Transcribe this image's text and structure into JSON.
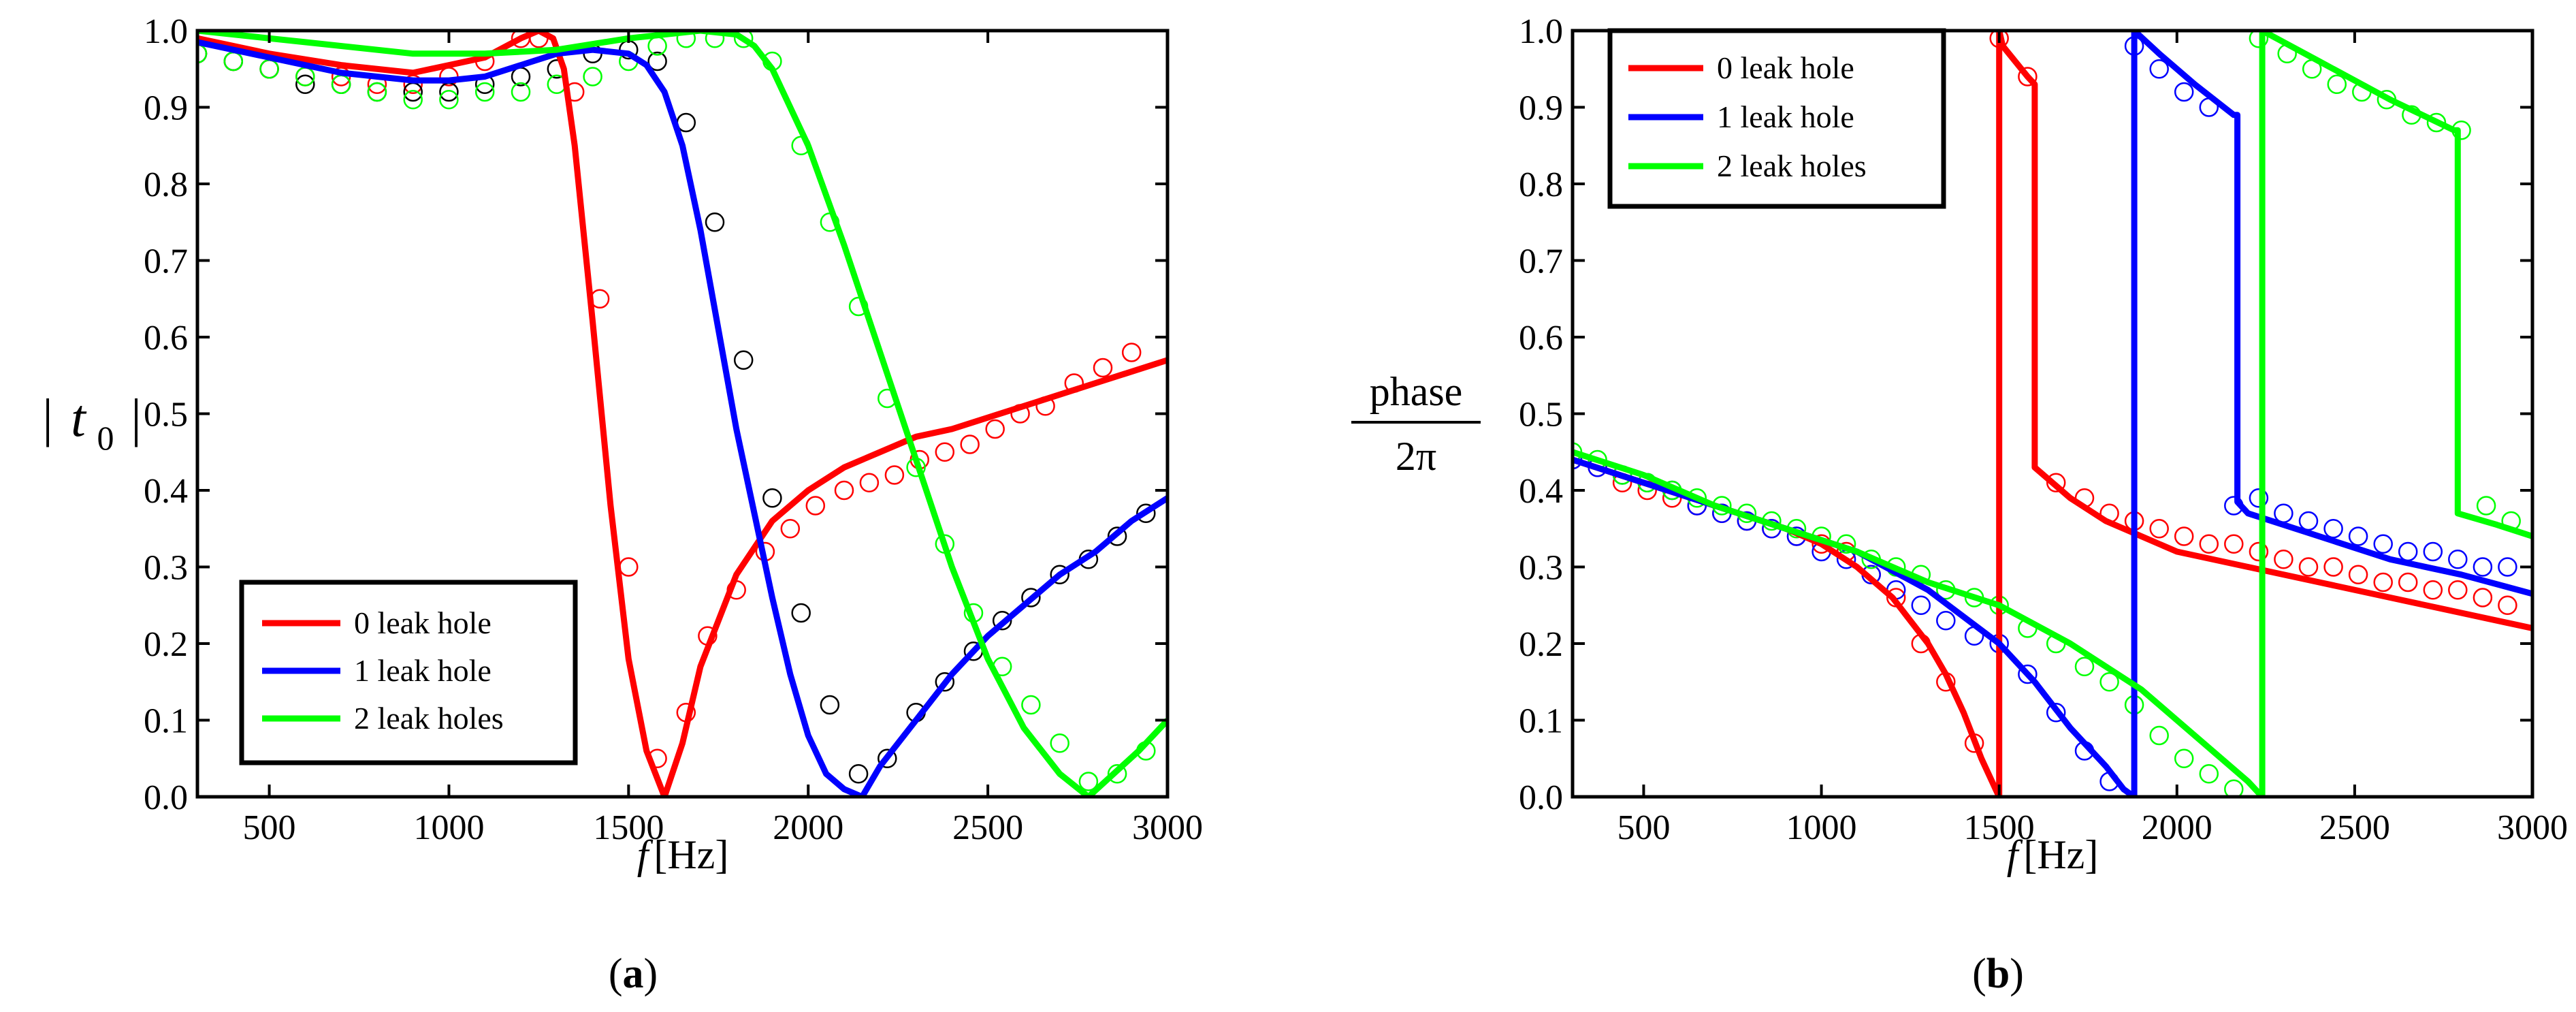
{
  "chart_data": [
    {
      "type": "line",
      "panel_label": "(a)",
      "panel_label_parts": [
        "(",
        "a",
        ")"
      ],
      "xlabel": "f [Hz]",
      "xlabel_parts": {
        "var": "f",
        "unit": "[Hz]"
      },
      "ylabel": "| t0 |",
      "ylabel_parts": {
        "left_bar": "|",
        "var": "t",
        "sub": "0",
        "right_bar": "|"
      },
      "xlim": [
        300,
        3000
      ],
      "ylim": [
        0,
        1.0
      ],
      "xticks": [
        500,
        1000,
        1500,
        2000,
        2500,
        3000
      ],
      "xtick_labels": [
        "500",
        "1000",
        "1500",
        "2000",
        "2500",
        "3000"
      ],
      "yticks": [
        0,
        0.1,
        0.2,
        0.3,
        0.4,
        0.5,
        0.6,
        0.7,
        0.8,
        0.9,
        1.0
      ],
      "ytick_labels": [
        "0.0",
        "0.1",
        "0.2",
        "0.3",
        "0.4",
        "0.5",
        "0.6",
        "0.7",
        "0.8",
        "0.9",
        "1.0"
      ],
      "legend_position": "bottom-left",
      "series": [
        {
          "name": "0 leak hole",
          "color": "#ff0000",
          "line": {
            "x": [
              300,
              500,
              700,
              900,
              1100,
              1200,
              1250,
              1290,
              1320,
              1350,
              1400,
              1450,
              1500,
              1550,
              1600,
              1650,
              1700,
              1800,
              1900,
              2000,
              2100,
              2200,
              2300,
              2400,
              2600,
              2800,
              3000
            ],
            "y": [
              0.99,
              0.97,
              0.955,
              0.945,
              0.965,
              0.99,
              1.0,
              0.99,
              0.95,
              0.85,
              0.62,
              0.38,
              0.18,
              0.06,
              0.0,
              0.07,
              0.17,
              0.29,
              0.36,
              0.4,
              0.43,
              0.45,
              0.47,
              0.48,
              0.51,
              0.54,
              0.57
            ]
          },
          "markers": {
            "x": [
              300,
              400,
              500,
              600,
              700,
              800,
              900,
              1000,
              1100,
              1200,
              1250,
              1350,
              1420,
              1500,
              1580,
              1660,
              1720,
              1800,
              1880,
              1950,
              2020,
              2100,
              2170,
              2240,
              2310,
              2380,
              2450,
              2520,
              2590,
              2660,
              2740,
              2820,
              2900
            ],
            "y": [
              0.97,
              0.96,
              0.95,
              0.94,
              0.94,
              0.93,
              0.93,
              0.94,
              0.96,
              0.99,
              0.99,
              0.92,
              0.65,
              0.3,
              0.05,
              0.11,
              0.21,
              0.27,
              0.32,
              0.35,
              0.38,
              0.4,
              0.41,
              0.42,
              0.44,
              0.45,
              0.46,
              0.48,
              0.5,
              0.51,
              0.54,
              0.56,
              0.58
            ]
          }
        },
        {
          "name": "1 leak hole",
          "color": "#0000ff",
          "marker_color": "#000000",
          "line": {
            "x": [
              300,
              500,
              700,
              900,
              1000,
              1100,
              1200,
              1300,
              1400,
              1500,
              1550,
              1600,
              1650,
              1700,
              1750,
              1800,
              1850,
              1900,
              1950,
              2000,
              2050,
              2100,
              2150,
              2200,
              2300,
              2400,
              2500,
              2600,
              2700,
              2800,
              2900,
              3000
            ],
            "y": [
              0.985,
              0.965,
              0.945,
              0.935,
              0.935,
              0.94,
              0.955,
              0.97,
              0.975,
              0.97,
              0.955,
              0.92,
              0.85,
              0.74,
              0.61,
              0.48,
              0.37,
              0.26,
              0.16,
              0.08,
              0.03,
              0.01,
              0.0,
              0.04,
              0.1,
              0.16,
              0.21,
              0.25,
              0.29,
              0.32,
              0.36,
              0.39
            ]
          },
          "markers": {
            "x": [
              300,
              400,
              500,
              600,
              700,
              800,
              900,
              1000,
              1100,
              1200,
              1300,
              1400,
              1500,
              1580,
              1660,
              1740,
              1820,
              1900,
              1980,
              2060,
              2140,
              2220,
              2300,
              2380,
              2460,
              2540,
              2620,
              2700,
              2780,
              2860,
              2940
            ],
            "y": [
              0.97,
              0.96,
              0.95,
              0.93,
              0.93,
              0.92,
              0.92,
              0.92,
              0.93,
              0.94,
              0.95,
              0.97,
              0.975,
              0.96,
              0.88,
              0.75,
              0.57,
              0.39,
              0.24,
              0.12,
              0.03,
              0.05,
              0.11,
              0.15,
              0.19,
              0.23,
              0.26,
              0.29,
              0.31,
              0.34,
              0.37
            ]
          }
        },
        {
          "name": "2 leak holes",
          "color": "#00ff00",
          "line": {
            "x": [
              300,
              600,
              900,
              1100,
              1300,
              1500,
              1600,
              1700,
              1800,
              1850,
              1900,
              2000,
              2100,
              2200,
              2300,
              2400,
              2500,
              2600,
              2700,
              2780,
              2850,
              2920,
              3000
            ],
            "y": [
              1.0,
              0.985,
              0.97,
              0.97,
              0.975,
              0.99,
              0.995,
              1.0,
              0.995,
              0.98,
              0.95,
              0.85,
              0.72,
              0.58,
              0.44,
              0.3,
              0.18,
              0.09,
              0.03,
              0.0,
              0.03,
              0.06,
              0.1
            ]
          },
          "markers": {
            "x": [
              300,
              400,
              500,
              600,
              700,
              800,
              900,
              1000,
              1100,
              1200,
              1300,
              1400,
              1500,
              1580,
              1660,
              1740,
              1820,
              1900,
              1980,
              2060,
              2140,
              2220,
              2300,
              2380,
              2460,
              2540,
              2620,
              2700,
              2780,
              2860,
              2940
            ],
            "y": [
              0.97,
              0.96,
              0.95,
              0.94,
              0.93,
              0.92,
              0.91,
              0.91,
              0.92,
              0.92,
              0.93,
              0.94,
              0.96,
              0.98,
              0.99,
              0.99,
              0.99,
              0.96,
              0.85,
              0.75,
              0.64,
              0.52,
              0.43,
              0.33,
              0.24,
              0.17,
              0.12,
              0.07,
              0.02,
              0.03,
              0.06
            ]
          }
        }
      ]
    },
    {
      "type": "line",
      "panel_label": "(b)",
      "panel_label_parts": [
        "(",
        "b",
        ")"
      ],
      "xlabel": "f [Hz]",
      "xlabel_parts": {
        "var": "f",
        "unit": "[Hz]"
      },
      "ylabel": "phase / 2π",
      "ylabel_parts": {
        "numerator": "phase",
        "denominator": "2π"
      },
      "xlim": [
        300,
        3000
      ],
      "ylim": [
        0,
        1.0
      ],
      "xticks": [
        500,
        1000,
        1500,
        2000,
        2500,
        3000
      ],
      "xtick_labels": [
        "500",
        "1000",
        "1500",
        "2000",
        "2500",
        "3000"
      ],
      "yticks": [
        0,
        0.1,
        0.2,
        0.3,
        0.4,
        0.5,
        0.6,
        0.7,
        0.8,
        0.9,
        1.0
      ],
      "ytick_labels": [
        "0.0",
        "0.1",
        "0.2",
        "0.3",
        "0.4",
        "0.5",
        "0.6",
        "0.7",
        "0.8",
        "0.9",
        "1.0"
      ],
      "legend_position": "top-left",
      "series": [
        {
          "name": "0 leak hole",
          "color": "#ff0000",
          "line": {
            "x": [
              300,
              500,
              700,
              900,
              1000,
              1100,
              1200,
              1300,
              1350,
              1400,
              1450,
              1490,
              1500,
              1500,
              1510,
              1580,
              1600,
              1600,
              1650,
              1700,
              1800,
              1900,
              2000,
              2200,
              2400,
              2600,
              2800,
              3000
            ],
            "y": [
              0.44,
              0.41,
              0.38,
              0.35,
              0.33,
              0.3,
              0.26,
              0.2,
              0.16,
              0.11,
              0.05,
              0.01,
              0.0,
              1.0,
              0.98,
              0.94,
              0.93,
              0.43,
              0.41,
              0.39,
              0.36,
              0.34,
              0.32,
              0.3,
              0.28,
              0.26,
              0.24,
              0.22
            ]
          },
          "markers": {
            "x": [
              300,
              370,
              440,
              510,
              580,
              650,
              720,
              790,
              860,
              930,
              1000,
              1070,
              1140,
              1210,
              1280,
              1350,
              1430,
              1500,
              1580,
              1660,
              1740,
              1810,
              1880,
              1950,
              2020,
              2090,
              2160,
              2230,
              2300,
              2370,
              2440,
              2510,
              2580,
              2650,
              2720,
              2790,
              2860,
              2930
            ],
            "y": [
              0.44,
              0.43,
              0.41,
              0.4,
              0.39,
              0.38,
              0.37,
              0.36,
              0.35,
              0.34,
              0.33,
              0.32,
              0.29,
              0.26,
              0.2,
              0.15,
              0.07,
              0.99,
              0.94,
              0.41,
              0.39,
              0.37,
              0.36,
              0.35,
              0.34,
              0.33,
              0.33,
              0.32,
              0.31,
              0.3,
              0.3,
              0.29,
              0.28,
              0.28,
              0.27,
              0.27,
              0.26,
              0.25
            ]
          }
        },
        {
          "name": "1 leak hole",
          "color": "#0000ff",
          "line": {
            "x": [
              300,
              500,
              700,
              900,
              1100,
              1300,
              1500,
              1600,
              1700,
              1800,
              1850,
              1880,
              1880,
              1950,
              2050,
              2160,
              2170,
              2170,
              2200,
              2400,
              2600,
              2800,
              3000
            ],
            "y": [
              0.44,
              0.41,
              0.38,
              0.35,
              0.32,
              0.27,
              0.2,
              0.15,
              0.09,
              0.04,
              0.01,
              0.0,
              1.0,
              0.97,
              0.93,
              0.89,
              0.89,
              0.385,
              0.37,
              0.34,
              0.31,
              0.29,
              0.265
            ]
          },
          "markers": {
            "x": [
              300,
              370,
              440,
              510,
              580,
              650,
              720,
              790,
              860,
              930,
              1000,
              1070,
              1140,
              1210,
              1280,
              1350,
              1430,
              1500,
              1580,
              1660,
              1740,
              1810,
              1880,
              1950,
              2020,
              2090,
              2160,
              2230,
              2300,
              2370,
              2440,
              2510,
              2580,
              2650,
              2720,
              2790,
              2860,
              2930
            ],
            "y": [
              0.44,
              0.43,
              0.42,
              0.41,
              0.4,
              0.38,
              0.37,
              0.36,
              0.35,
              0.34,
              0.32,
              0.31,
              0.29,
              0.27,
              0.25,
              0.23,
              0.21,
              0.2,
              0.16,
              0.11,
              0.06,
              0.02,
              0.98,
              0.95,
              0.92,
              0.9,
              0.38,
              0.39,
              0.37,
              0.36,
              0.35,
              0.34,
              0.33,
              0.32,
              0.32,
              0.31,
              0.3,
              0.3
            ]
          }
        },
        {
          "name": "2 leak holes",
          "color": "#00ff00",
          "line": {
            "x": [
              300,
              500,
              700,
              900,
              1100,
              1300,
              1500,
              1700,
              1900,
              2000,
              2100,
              2200,
              2240,
              2240,
              2400,
              2600,
              2780,
              2790,
              2790,
              2900,
              3000
            ],
            "y": [
              0.45,
              0.42,
              0.38,
              0.35,
              0.32,
              0.28,
              0.25,
              0.2,
              0.14,
              0.1,
              0.06,
              0.02,
              0.0,
              1.0,
              0.96,
              0.91,
              0.87,
              0.87,
              0.37,
              0.355,
              0.34
            ]
          },
          "markers": {
            "x": [
              300,
              370,
              440,
              510,
              580,
              650,
              720,
              790,
              860,
              930,
              1000,
              1070,
              1140,
              1210,
              1280,
              1350,
              1430,
              1500,
              1580,
              1660,
              1740,
              1810,
              1880,
              1950,
              2020,
              2090,
              2160,
              2230,
              2310,
              2380,
              2450,
              2520,
              2590,
              2660,
              2730,
              2800,
              2870,
              2940
            ],
            "y": [
              0.45,
              0.44,
              0.42,
              0.41,
              0.4,
              0.39,
              0.38,
              0.37,
              0.36,
              0.35,
              0.34,
              0.33,
              0.31,
              0.3,
              0.29,
              0.27,
              0.26,
              0.25,
              0.22,
              0.2,
              0.17,
              0.15,
              0.12,
              0.08,
              0.05,
              0.03,
              0.01,
              0.99,
              0.97,
              0.95,
              0.93,
              0.92,
              0.91,
              0.89,
              0.88,
              0.87,
              0.38,
              0.36
            ]
          }
        }
      ]
    }
  ]
}
